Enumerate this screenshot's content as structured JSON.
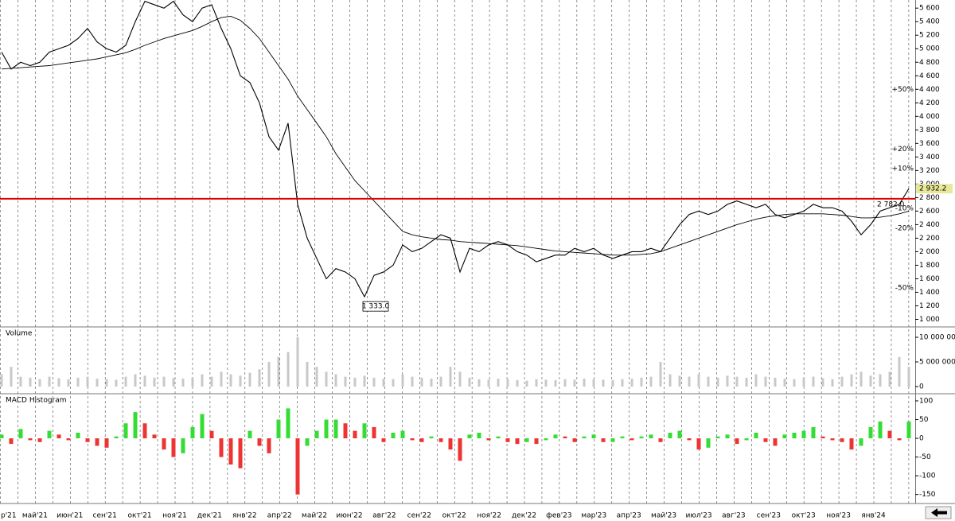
{
  "time_axis": {
    "labels": [
      "р'21",
      "май'21",
      "июн'21",
      "сен'21",
      "окт'21",
      "ноя'21",
      "дек'21",
      "янв'22",
      "апр'22",
      "май'22",
      "июн'22",
      "авг'22",
      "сен'22",
      "окт'22",
      "ноя'22",
      "дек'22",
      "фев'23",
      "мар'23",
      "апр'23",
      "май'23",
      "июл'23",
      "авг'23",
      "сен'23",
      "окт'23",
      "ноя'23",
      "янв'24"
    ]
  },
  "chart_data": [
    {
      "type": "line",
      "ylim": [
        900,
        5720
      ],
      "yticks": [
        {
          "value": 1000,
          "label": "1 000"
        },
        {
          "value": 1200,
          "label": "1 200"
        },
        {
          "value": 1400,
          "label": "1 400"
        },
        {
          "value": 1600,
          "label": "1 600"
        },
        {
          "value": 1800,
          "label": "1 800"
        },
        {
          "value": 2000,
          "label": "2 000"
        },
        {
          "value": 2200,
          "label": "2 200"
        },
        {
          "value": 2400,
          "label": "2 400"
        },
        {
          "value": 2600,
          "label": "2 600"
        },
        {
          "value": 2800,
          "label": "2 800"
        },
        {
          "value": 3000,
          "label": "3 000"
        },
        {
          "value": 3200,
          "label": "3 200"
        },
        {
          "value": 3400,
          "label": "3 400"
        },
        {
          "value": 3600,
          "label": "3 600"
        },
        {
          "value": 3800,
          "label": "3 800"
        },
        {
          "value": 4000,
          "label": "4 000"
        },
        {
          "value": 4200,
          "label": "4 200"
        },
        {
          "value": 4400,
          "label": "4 400"
        },
        {
          "value": 4600,
          "label": "4 600"
        },
        {
          "value": 4800,
          "label": "4 800"
        },
        {
          "value": 5000,
          "label": "5 000"
        },
        {
          "value": 5200,
          "label": "5 200"
        },
        {
          "value": 5400,
          "label": "5 400"
        },
        {
          "value": 5600,
          "label": "5 600"
        }
      ],
      "series": [
        {
          "color": "#000000",
          "values": [
            4950,
            4700,
            4800,
            4750,
            4800,
            4950,
            5000,
            5050,
            5150,
            5300,
            5100,
            5000,
            4950,
            5050,
            5400,
            5700,
            5650,
            5600,
            5700,
            5500,
            5400,
            5600,
            5650,
            5300,
            5000,
            4600,
            4500,
            4200,
            3700,
            3500,
            3900,
            2700,
            2200,
            1900,
            1600,
            1750,
            1700,
            1600,
            1333,
            1650,
            1700,
            1800,
            2100,
            2000,
            2050,
            2150,
            2250,
            2200,
            1700,
            2050,
            2000,
            2100,
            2150,
            2100,
            2000,
            1950,
            1850,
            1900,
            1950,
            1950,
            2050,
            2000,
            2050,
            1950,
            1900,
            1950,
            2000,
            2000,
            2050,
            2000,
            2200,
            2400,
            2550,
            2600,
            2550,
            2600,
            2700,
            2750,
            2700,
            2650,
            2700,
            2550,
            2500,
            2550,
            2600,
            2700,
            2650,
            2650,
            2600,
            2450,
            2250,
            2400,
            2600,
            2650,
            2700,
            2932.2
          ]
        },
        {
          "color": "#000000",
          "values": [
            4700,
            4710,
            4720,
            4730,
            4740,
            4750,
            4770,
            4790,
            4810,
            4830,
            4850,
            4880,
            4910,
            4940,
            4990,
            5050,
            5100,
            5150,
            5190,
            5230,
            5270,
            5330,
            5400,
            5460,
            5480,
            5420,
            5300,
            5150,
            4950,
            4750,
            4550,
            4300,
            4100,
            3900,
            3700,
            3450,
            3250,
            3050,
            2900,
            2750,
            2600,
            2450,
            2300,
            2250,
            2220,
            2200,
            2180,
            2170,
            2150,
            2140,
            2130,
            2120,
            2110,
            2100,
            2090,
            2070,
            2050,
            2030,
            2010,
            2000,
            1990,
            1980,
            1970,
            1960,
            1950,
            1950,
            1950,
            1960,
            1970,
            2000,
            2050,
            2100,
            2150,
            2200,
            2250,
            2300,
            2350,
            2400,
            2440,
            2480,
            2510,
            2530,
            2550,
            2560,
            2560,
            2560,
            2560,
            2550,
            2540,
            2520,
            2500,
            2500,
            2510,
            2530,
            2560,
            2600
          ]
        }
      ],
      "last_label": "2 932.2",
      "level": {
        "value": 2782,
        "label": "2 782.0",
        "color": "#e00000"
      },
      "annotations": [
        {
          "text": "1 333.0",
          "value": 1333
        }
      ],
      "pct_levels": [
        {
          "value": 50,
          "label": "+50%"
        },
        {
          "value": 20,
          "label": "+20%"
        },
        {
          "value": 10,
          "label": "+10%"
        },
        {
          "value": -10,
          "label": "-10%"
        },
        {
          "value": -20,
          "label": "-20%"
        },
        {
          "value": -50,
          "label": "-50%"
        }
      ]
    },
    {
      "type": "bar",
      "title": "Volume",
      "color": "#c8c8c8",
      "ylim": [
        -1290000,
        11940000
      ],
      "yticks": [
        {
          "value": 0,
          "label": "0"
        },
        {
          "value": 5000000,
          "label": "5 000 000"
        },
        {
          "value": 10000000,
          "label": "10 000 000"
        }
      ],
      "values": [
        2500000,
        4000000,
        2000000,
        1800000,
        1500000,
        2000000,
        1700000,
        1500000,
        1800000,
        2000000,
        1600000,
        1500000,
        1400000,
        2000000,
        2500000,
        2200000,
        1800000,
        2000000,
        1700000,
        1600000,
        1800000,
        2500000,
        2000000,
        3000000,
        2500000,
        2200000,
        2800000,
        3500000,
        5000000,
        6000000,
        7000000,
        10000000,
        5000000,
        4000000,
        3000000,
        2500000,
        2000000,
        1800000,
        2200000,
        1800000,
        1600000,
        1500000,
        2500000,
        2000000,
        1800000,
        1600000,
        2000000,
        4000000,
        3000000,
        1800000,
        1500000,
        1400000,
        1600000,
        1500000,
        1300000,
        1200000,
        1500000,
        1400000,
        1300000,
        1500000,
        1400000,
        1600000,
        1500000,
        1400000,
        1300000,
        1500000,
        1600000,
        1800000,
        2000000,
        5000000,
        2500000,
        2200000,
        2000000,
        2500000,
        2000000,
        1800000,
        2200000,
        2000000,
        1800000,
        2500000,
        2000000,
        1800000,
        1600000,
        1500000,
        1800000,
        2000000,
        1700000,
        1500000,
        2000000,
        2500000,
        3000000,
        2200000,
        2500000,
        3000000,
        6000000,
        4000000
      ]
    },
    {
      "type": "histogram_bar",
      "title": "MACD Histogram",
      "up_color": "#33dd33",
      "down_color": "#ee3333",
      "ylim": [
        -172,
        117
      ],
      "yticks": [
        100,
        50,
        0,
        -50,
        -100,
        -150
      ],
      "values": [
        10,
        -15,
        25,
        -5,
        -10,
        20,
        10,
        -5,
        15,
        -10,
        -20,
        -25,
        5,
        40,
        70,
        40,
        10,
        -30,
        -50,
        -40,
        30,
        65,
        20,
        -50,
        -70,
        -80,
        20,
        -20,
        -40,
        50,
        80,
        -150,
        -20,
        20,
        50,
        50,
        40,
        20,
        40,
        30,
        -10,
        15,
        20,
        -5,
        -10,
        5,
        -10,
        -30,
        -60,
        10,
        15,
        -5,
        5,
        -10,
        -15,
        -10,
        -15,
        -5,
        10,
        5,
        -10,
        5,
        10,
        -10,
        -10,
        5,
        -5,
        5,
        10,
        -10,
        15,
        20,
        -5,
        -30,
        -25,
        5,
        10,
        -15,
        -5,
        15,
        -10,
        -20,
        10,
        15,
        20,
        30,
        5,
        -5,
        -10,
        -30,
        -20,
        30,
        45,
        20,
        -5,
        45
      ]
    }
  ]
}
